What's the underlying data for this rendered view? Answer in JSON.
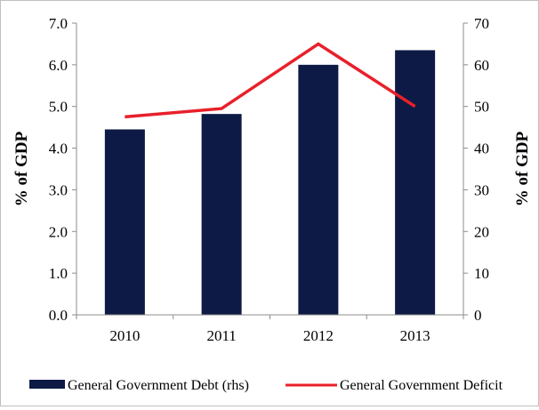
{
  "chart_data": {
    "type": "bar+line",
    "categories": [
      "2010",
      "2011",
      "2012",
      "2013"
    ],
    "series": [
      {
        "name": "General Government Debt (rhs)",
        "type": "bar",
        "axis": "right",
        "color": "#0d1a45",
        "values": [
          44.5,
          48.2,
          60.0,
          63.5
        ]
      },
      {
        "name": "General Government Deficit",
        "type": "line",
        "axis": "left",
        "color": "#e8202a",
        "values": [
          4.75,
          4.95,
          6.5,
          5.0
        ]
      }
    ],
    "left_axis": {
      "label": "% of GDP",
      "ylim": [
        0,
        7
      ],
      "ticks": [
        "0.0",
        "1.0",
        "2.0",
        "3.0",
        "4.0",
        "5.0",
        "6.0",
        "7.0"
      ]
    },
    "right_axis": {
      "label": "% of GDP",
      "ylim": [
        0,
        70
      ],
      "ticks": [
        "0",
        "10",
        "20",
        "30",
        "40",
        "50",
        "60",
        "70"
      ]
    },
    "grid": false,
    "legend_position": "bottom"
  }
}
